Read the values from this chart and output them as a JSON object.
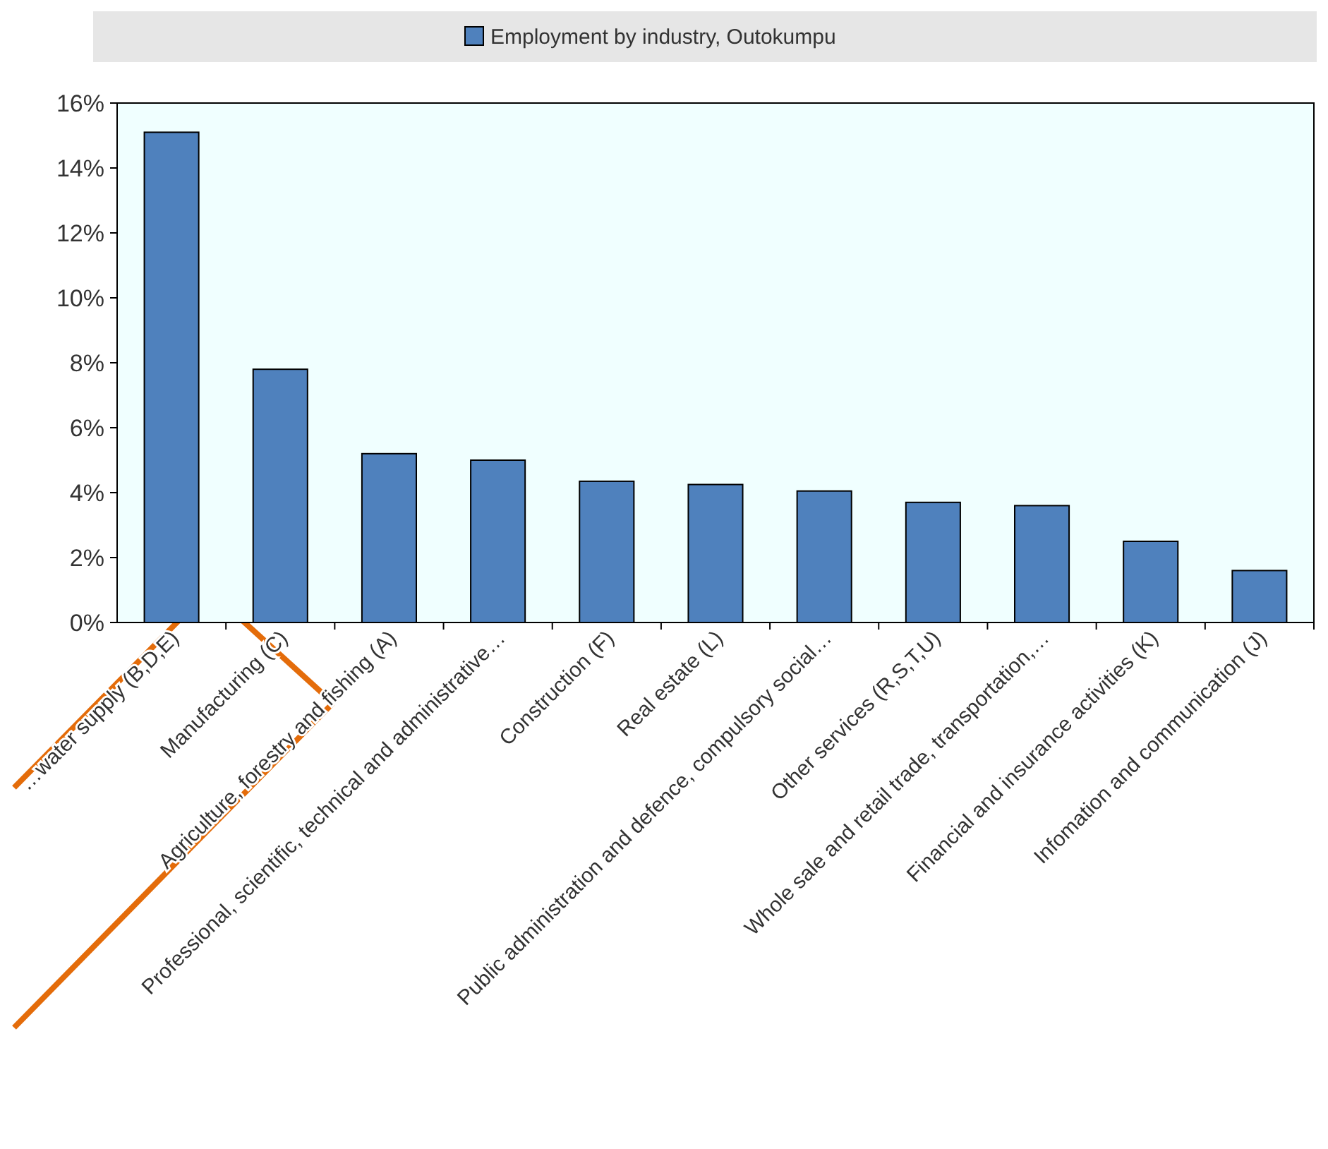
{
  "chart_data": {
    "type": "bar",
    "categories": [
      "…water supply (B,D,E)",
      "Manufacturing (C)",
      "Agriculture, forestry and fishing (A)",
      "Professional, scientific, technical and administrative…",
      "Construction (F)",
      "Real estate (L)",
      "Public administration and defence, compulsory social…",
      "Other services   (R,S,T,U)",
      "Whole sale and retail trade, transportation,…",
      "Financial and insurance activities (K)",
      "Infomation and communication (J)"
    ],
    "series": [
      {
        "name": "Employment by industry, Outokumpu",
        "color": "#4f81bd",
        "values": [
          15.1,
          7.8,
          5.2,
          5.0,
          4.35,
          4.25,
          4.05,
          3.7,
          3.6,
          2.5,
          1.6
        ]
      }
    ],
    "ylim": [
      0,
      16
    ],
    "yticks": [
      {
        "value": 0,
        "label": "0%"
      },
      {
        "value": 2,
        "label": "2%"
      },
      {
        "value": 4,
        "label": "4%"
      },
      {
        "value": 6,
        "label": "6%"
      },
      {
        "value": 8,
        "label": "8%"
      },
      {
        "value": 10,
        "label": "10%"
      },
      {
        "value": 12,
        "label": "12%"
      },
      {
        "value": 14,
        "label": "14%"
      },
      {
        "value": 16,
        "label": "16%"
      }
    ],
    "grid": false,
    "legend": "top"
  }
}
